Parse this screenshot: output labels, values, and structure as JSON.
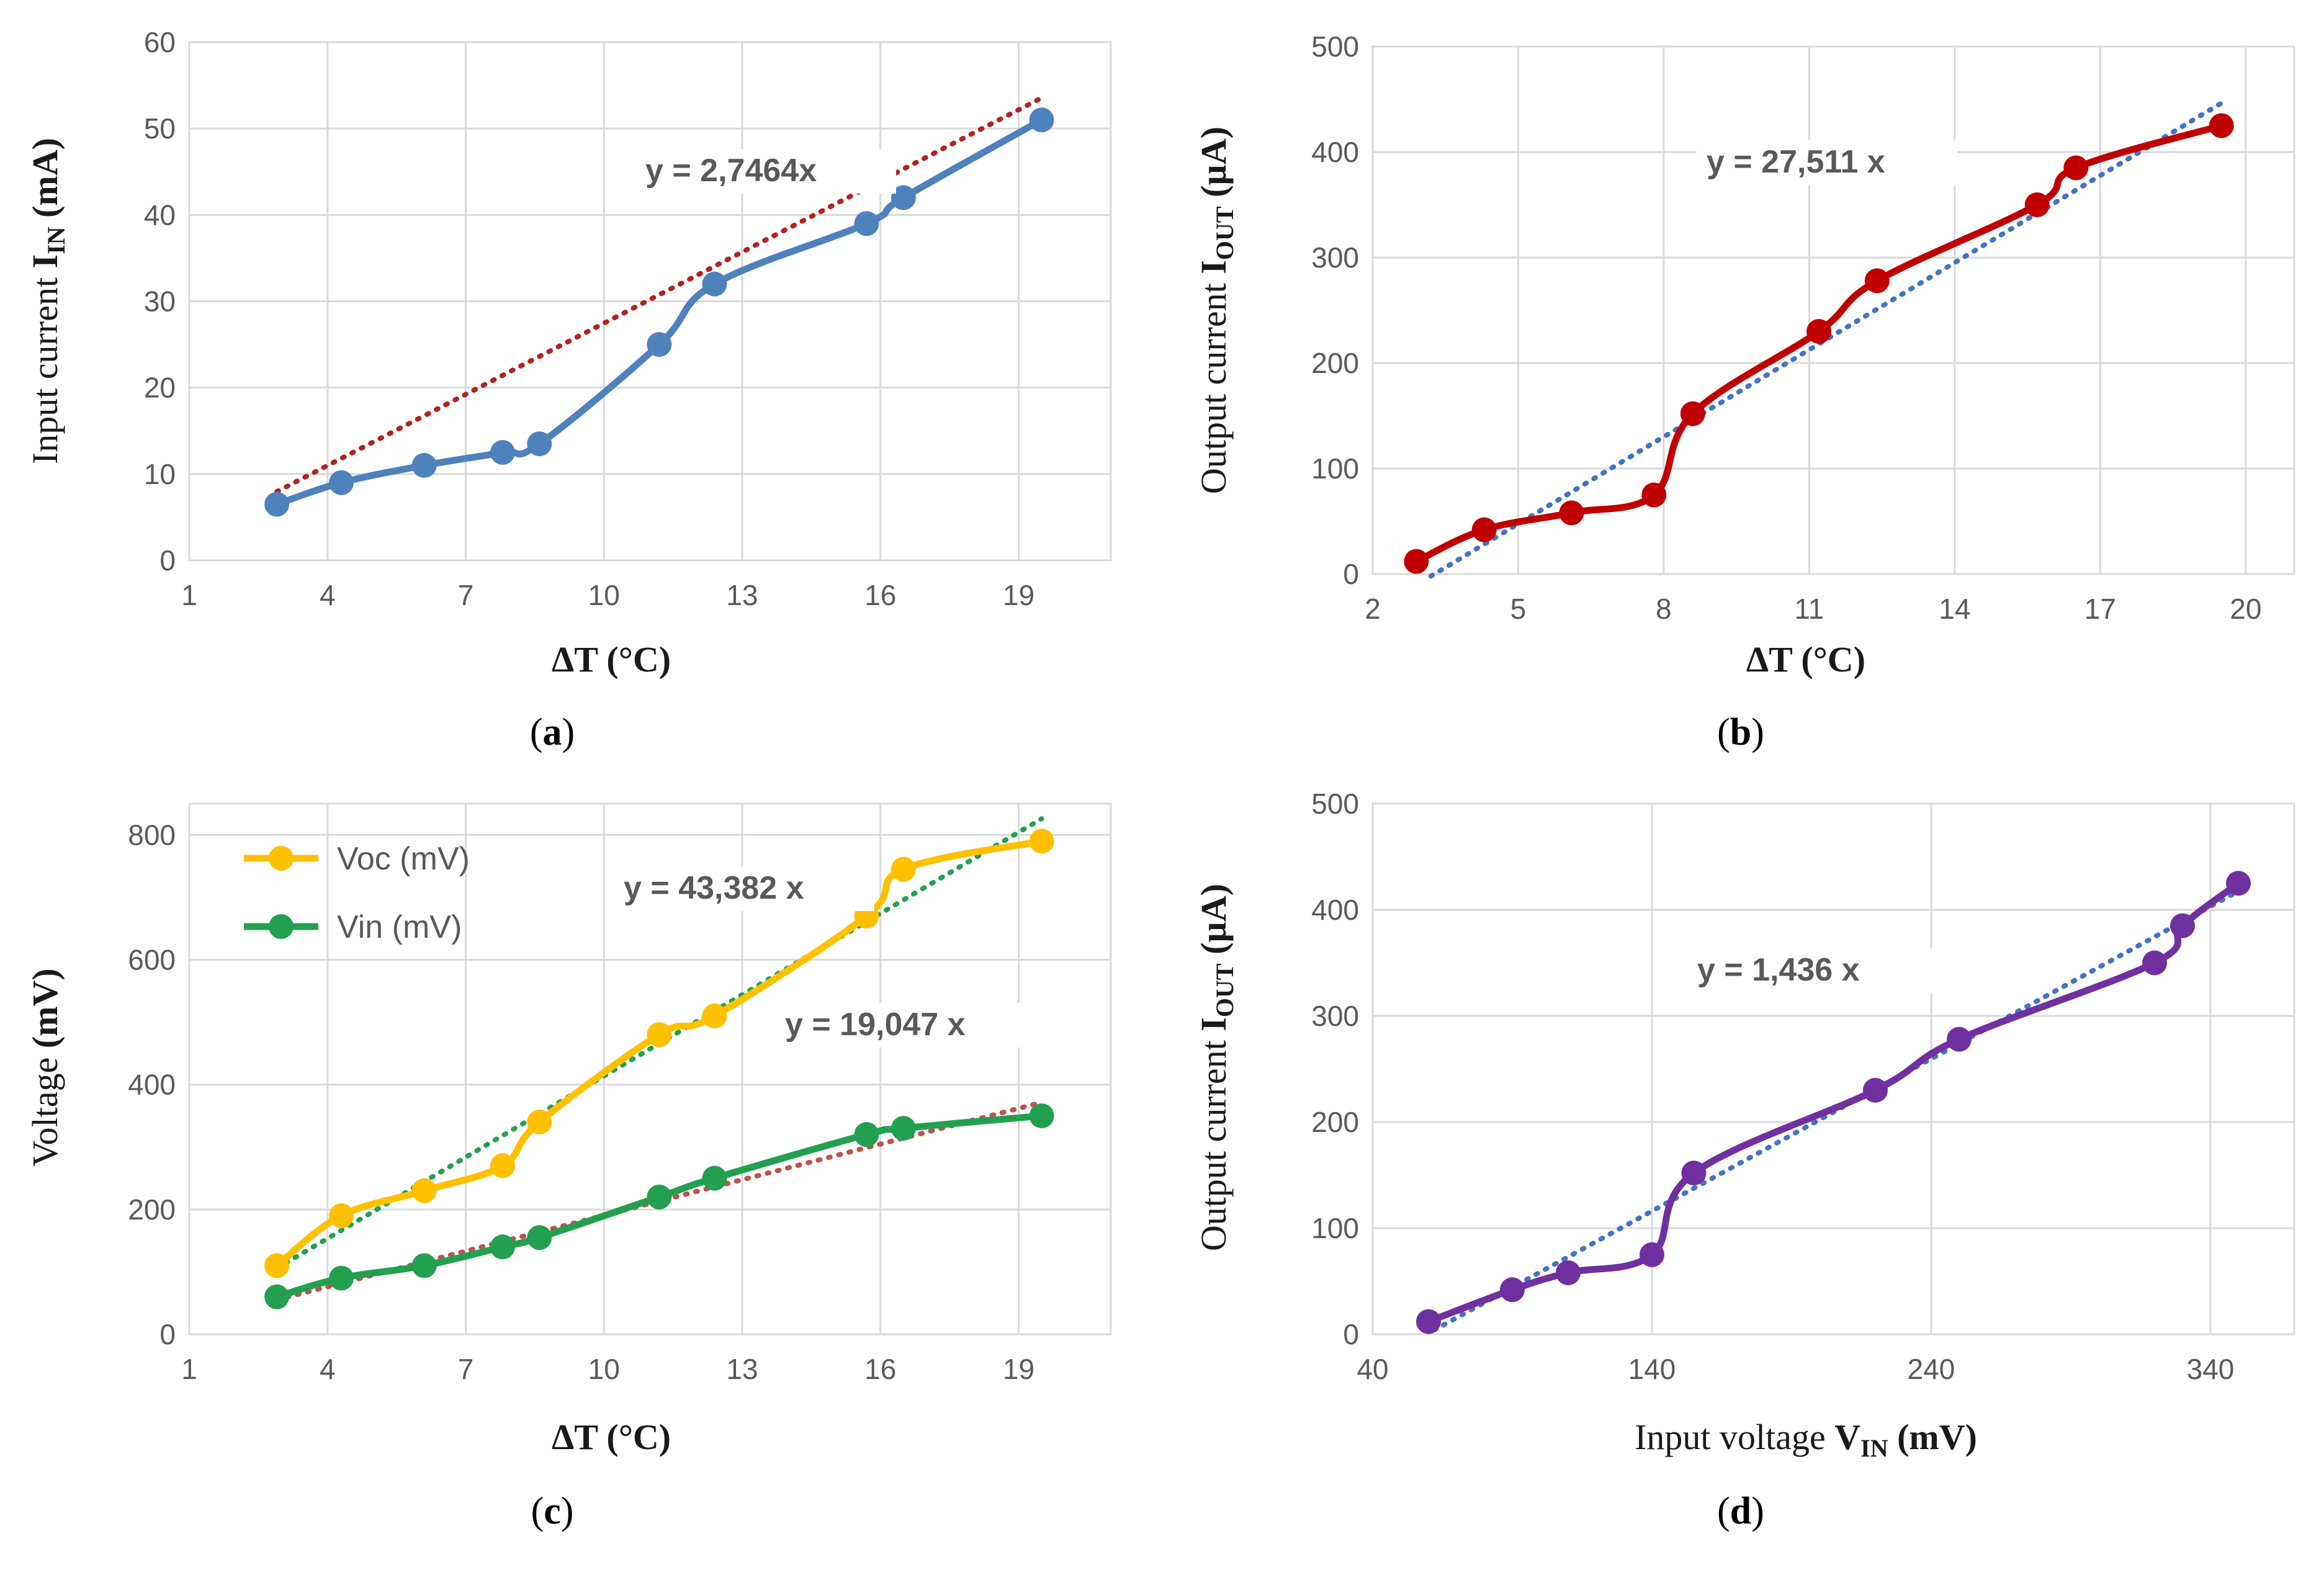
{
  "chart_data": [
    {
      "id": "a",
      "type": "line",
      "panel_label": "a",
      "xlabel_symbol": "ΔT",
      "xlabel_unit": "(°C)",
      "ylabel": "Input current",
      "ylabel_symbol": "I",
      "ylabel_sub": "IN",
      "ylabel_unit": "(mA)",
      "xlim": [
        1,
        21
      ],
      "ylim": [
        0,
        60
      ],
      "xticks": [
        1,
        4,
        7,
        10,
        13,
        16,
        19
      ],
      "yticks": [
        0,
        10,
        20,
        30,
        40,
        50,
        60
      ],
      "grid": true,
      "series": [
        {
          "name": "Input current",
          "color": "#4F81BD",
          "x": [
            2.9,
            4.3,
            6.1,
            7.8,
            8.6,
            11.2,
            12.4,
            15.7,
            16.5,
            19.5
          ],
          "y": [
            6.5,
            9.0,
            11.0,
            12.5,
            13.5,
            25.0,
            32.0,
            39.0,
            42.0,
            51.0
          ]
        }
      ],
      "trendlines": [
        {
          "slope": 2.7464,
          "x_range": [
            2.9,
            19.5
          ],
          "color": "#B22222"
        }
      ],
      "equations": [
        "y = 2,7464x"
      ]
    },
    {
      "id": "b",
      "type": "line",
      "panel_label": "b",
      "xlabel_symbol": "ΔT",
      "xlabel_unit": "(°C)",
      "ylabel": "Output current",
      "ylabel_symbol": "I",
      "ylabel_sub": "OUT",
      "ylabel_unit": "(µA)",
      "xlim": [
        2,
        21
      ],
      "ylim": [
        0,
        500
      ],
      "xticks": [
        2,
        5,
        8,
        11,
        14,
        17,
        20
      ],
      "yticks": [
        0,
        100,
        200,
        300,
        400,
        500
      ],
      "grid": true,
      "series": [
        {
          "name": "Output current",
          "color": "#C00000",
          "x": [
            2.9,
            4.3,
            6.1,
            7.8,
            8.6,
            11.2,
            12.4,
            15.7,
            16.5,
            19.5
          ],
          "y": [
            12,
            42,
            58,
            75,
            152,
            230,
            278,
            350,
            385,
            425
          ]
        }
      ],
      "trendlines": [
        {
          "slope": 27.511,
          "intercept": -90,
          "x_range": [
            3.2,
            19.5
          ],
          "color": "#4472C4"
        }
      ],
      "equations": [
        "y = 27,511 x"
      ]
    },
    {
      "id": "c",
      "type": "line",
      "panel_label": "c",
      "xlabel_symbol": "ΔT",
      "xlabel_unit": "(°C)",
      "ylabel": "Voltage",
      "ylabel_unit": "(mV)",
      "xlim": [
        1,
        21
      ],
      "ylim": [
        0,
        850
      ],
      "xticks": [
        1,
        4,
        7,
        10,
        13,
        16,
        19
      ],
      "yticks": [
        0,
        200,
        400,
        600,
        800
      ],
      "grid": true,
      "legend_position": "top-left",
      "series": [
        {
          "name": "Voc (mV)",
          "color": "#FFC000",
          "x": [
            2.9,
            4.3,
            6.1,
            7.8,
            8.6,
            11.2,
            12.4,
            15.7,
            16.5,
            19.5
          ],
          "y": [
            110,
            190,
            230,
            270,
            340,
            480,
            510,
            670,
            745,
            790
          ]
        },
        {
          "name": "Vin (mV)",
          "color": "#22A050",
          "x": [
            2.9,
            4.3,
            6.1,
            7.8,
            8.6,
            11.2,
            12.4,
            15.7,
            16.5,
            19.5
          ],
          "y": [
            60,
            90,
            110,
            140,
            155,
            220,
            250,
            320,
            330,
            350
          ]
        }
      ],
      "trendlines": [
        {
          "slope": 43.382,
          "intercept": -20,
          "x_range": [
            2.9,
            19.5
          ],
          "color": "#22A050"
        },
        {
          "slope": 19.047,
          "intercept": 0,
          "x_range": [
            2.9,
            19.5
          ],
          "color": "#C0504D"
        }
      ],
      "equations": [
        "y = 43,382 x",
        "y = 19,047 x"
      ]
    },
    {
      "id": "d",
      "type": "line",
      "panel_label": "d",
      "xlabel": "Input voltage",
      "xlabel_symbol": "V",
      "xlabel_sub": "IN",
      "xlabel_unit": "(mV)",
      "ylabel": "Output current",
      "ylabel_symbol": "I",
      "ylabel_sub": "OUT",
      "ylabel_unit": "(µA)",
      "xlim": [
        40,
        370
      ],
      "ylim": [
        0,
        500
      ],
      "xticks": [
        40,
        140,
        240,
        340
      ],
      "yticks": [
        0,
        100,
        200,
        300,
        400,
        500
      ],
      "grid": true,
      "series": [
        {
          "name": "Output current",
          "color": "#7030A0",
          "x": [
            60,
            90,
            110,
            140,
            155,
            220,
            250,
            320,
            330,
            350
          ],
          "y": [
            12,
            42,
            58,
            75,
            152,
            230,
            278,
            350,
            385,
            425
          ]
        }
      ],
      "trendlines": [
        {
          "slope": 1.436,
          "intercept": -85,
          "x_range": [
            62,
            350
          ],
          "color": "#4472C4"
        }
      ],
      "equations": [
        "y = 1,436 x"
      ]
    }
  ]
}
